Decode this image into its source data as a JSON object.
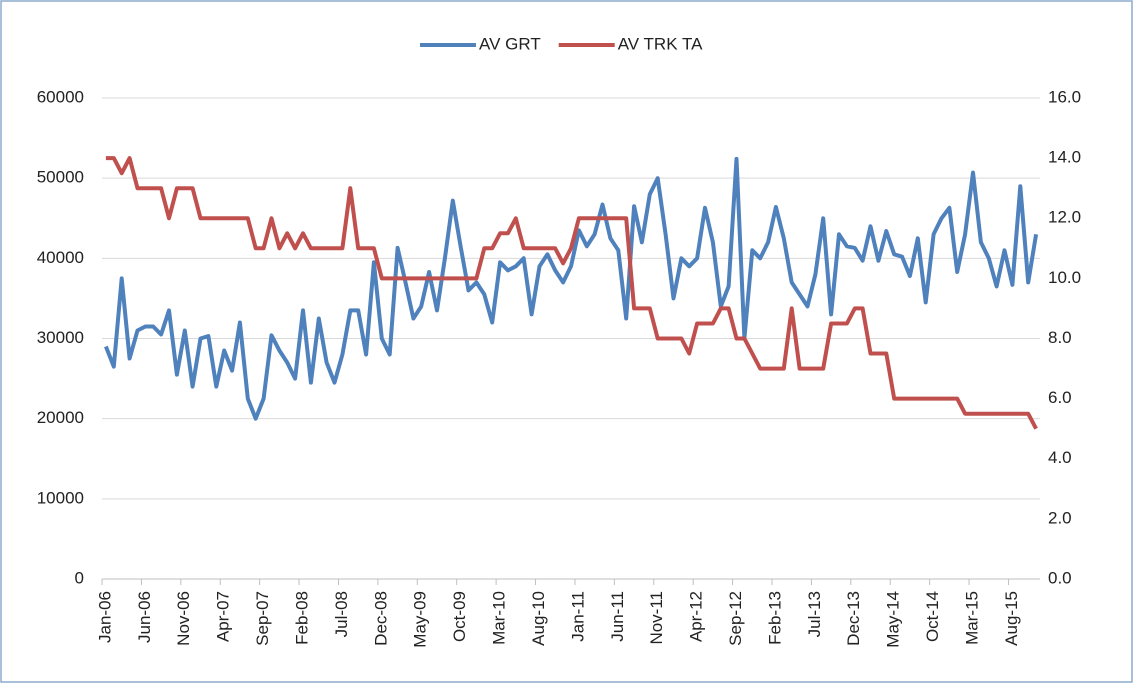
{
  "chart_data": {
    "type": "line",
    "categories": [
      "Jan-06",
      null,
      null,
      null,
      null,
      "Jun-06",
      null,
      null,
      null,
      null,
      "Nov-06",
      null,
      null,
      null,
      null,
      "Apr-07",
      null,
      null,
      null,
      null,
      "Sep-07",
      null,
      null,
      null,
      null,
      "Feb-08",
      null,
      null,
      null,
      null,
      "Jul-08",
      null,
      null,
      null,
      null,
      "Dec-08",
      null,
      null,
      null,
      null,
      "May-09",
      null,
      null,
      null,
      null,
      "Oct-09",
      null,
      null,
      null,
      null,
      "Mar-10",
      null,
      null,
      null,
      null,
      "Aug-10",
      null,
      null,
      null,
      null,
      "Jan-11",
      null,
      null,
      null,
      null,
      "Jun-11",
      null,
      null,
      null,
      null,
      "Nov-11",
      null,
      null,
      null,
      null,
      "Apr-12",
      null,
      null,
      null,
      null,
      "Sep-12",
      null,
      null,
      null,
      null,
      "Feb-13",
      null,
      null,
      null,
      null,
      "Jul-13",
      null,
      null,
      null,
      null,
      "Dec-13",
      null,
      null,
      null,
      null,
      "May-14",
      null,
      null,
      null,
      null,
      "Oct-14",
      null,
      null,
      null,
      null,
      "Mar-15",
      null,
      null,
      null,
      null,
      "Aug-15",
      null,
      null,
      null
    ],
    "series": [
      {
        "name": "AV GRT",
        "color": "#4f81bd",
        "values": [
          29000,
          26500,
          37500,
          27500,
          31000,
          31500,
          31500,
          30500,
          33500,
          25500,
          31000,
          24000,
          30000,
          30300,
          24000,
          28500,
          26000,
          32000,
          22500,
          20000,
          22500,
          30400,
          28500,
          27000,
          25000,
          33500,
          24500,
          32500,
          27000,
          24500,
          28000,
          33500,
          33500,
          28000,
          39500,
          30000,
          28000,
          41300,
          37000,
          32500,
          34000,
          38300,
          33500,
          40000,
          47200,
          41500,
          36000,
          37000,
          35500,
          32000,
          39500,
          38500,
          39000,
          40000,
          33000,
          39000,
          40500,
          38500,
          37000,
          39000,
          43500,
          41500,
          43000,
          46700,
          42500,
          41000,
          32500,
          46500,
          42000,
          48000,
          50000,
          43000,
          35000,
          40000,
          39000,
          40000,
          46300,
          42000,
          34000,
          36500,
          52400,
          30000,
          41000,
          40000,
          42000,
          46400,
          42500,
          37000,
          35500,
          34000,
          38000,
          45000,
          33000,
          43000,
          41500,
          41300,
          39700,
          44000,
          39700,
          43400,
          40500,
          40200,
          37800,
          42500,
          34500,
          43000,
          45000,
          46300,
          38300,
          43000,
          50700,
          42000,
          40000,
          36500,
          41000,
          36700,
          49000,
          37000,
          43000
        ]
      },
      {
        "name": "AV TRK TA",
        "color": "#c0504d",
        "axis": "y2",
        "values": [
          14,
          14,
          13.5,
          14,
          13,
          13,
          13,
          13,
          12,
          13,
          13,
          13,
          12,
          12,
          12,
          12,
          12,
          12,
          12,
          11,
          11,
          12,
          11,
          11.5,
          11,
          11.5,
          11,
          11,
          11,
          11,
          11,
          13,
          11,
          11,
          11,
          10,
          10,
          10,
          10,
          10,
          10,
          10,
          10,
          10,
          10,
          10,
          10,
          10,
          11,
          11,
          11.5,
          11.5,
          12,
          11,
          11,
          11,
          11,
          11,
          10.5,
          11,
          12,
          12,
          12,
          12,
          12,
          12,
          12,
          9,
          9,
          9,
          8,
          8,
          8,
          8,
          7.5,
          8.5,
          8.5,
          8.5,
          9,
          9,
          8,
          8,
          7.5,
          7,
          7,
          7,
          7,
          9,
          7,
          7,
          7,
          7,
          8.5,
          8.5,
          8.5,
          9,
          9,
          7.5,
          7.5,
          7.5,
          6,
          6,
          6,
          6,
          6,
          6,
          6,
          6,
          6,
          5.5,
          5.5,
          5.5,
          5.5,
          5.5,
          5.5,
          5.5,
          5.5,
          5.5,
          5
        ]
      }
    ],
    "ylim": [
      0,
      60000
    ],
    "yticks": [
      0,
      10000,
      20000,
      30000,
      40000,
      50000,
      60000
    ],
    "y2lim": [
      0,
      16
    ],
    "y2ticks": [
      {
        "value": 0,
        "label": "0.0"
      },
      {
        "value": 2,
        "label": "2.0"
      },
      {
        "value": 4,
        "label": "4.0"
      },
      {
        "value": 6,
        "label": "6.0"
      },
      {
        "value": 8,
        "label": "8.0"
      },
      {
        "value": 10,
        "label": "10.0"
      },
      {
        "value": 12,
        "label": "12.0"
      },
      {
        "value": 14,
        "label": "14.0"
      },
      {
        "value": 16,
        "label": "16.0"
      }
    ],
    "grid": true,
    "legend": "top"
  }
}
